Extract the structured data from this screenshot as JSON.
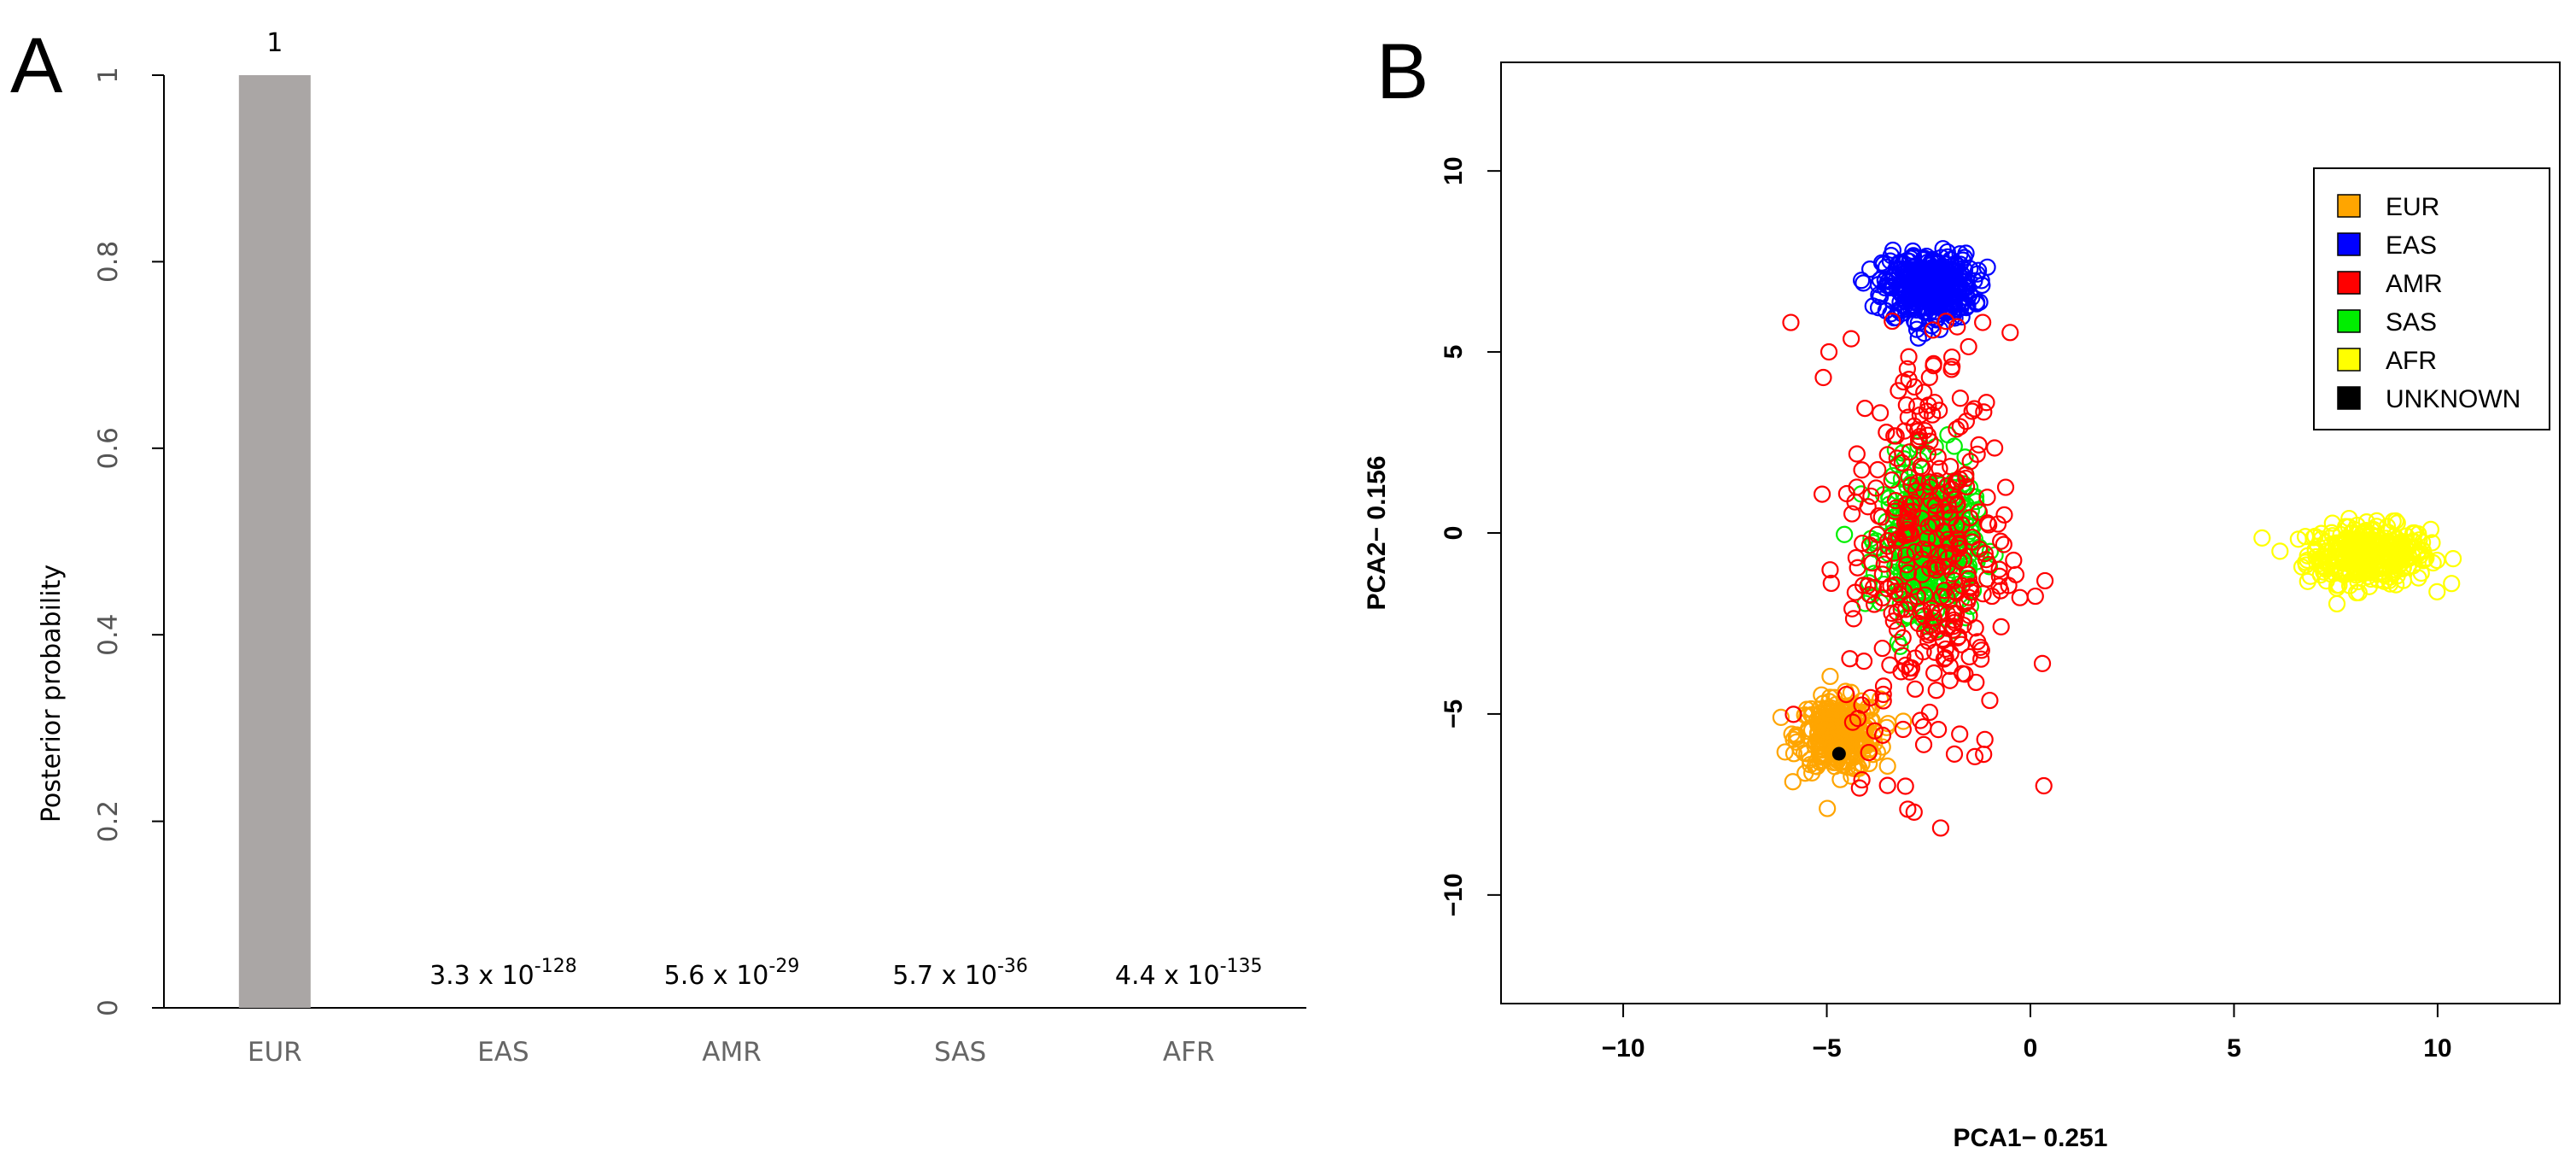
{
  "chart_data": [
    {
      "panel_label": "A",
      "type": "bar",
      "categories": [
        "EUR",
        "EAS",
        "AMR",
        "SAS",
        "AFR"
      ],
      "values": [
        1,
        3.3e-128,
        5.6e-29,
        5.7e-36,
        4.4e-135
      ],
      "value_labels": [
        {
          "base": "1",
          "exp": ""
        },
        {
          "base": "3.3 x 10",
          "exp": "-128"
        },
        {
          "base": "5.6 x 10",
          "exp": "-29"
        },
        {
          "base": "5.7 x 10",
          "exp": "-36"
        },
        {
          "base": "4.4 x 10",
          "exp": "-135"
        }
      ],
      "xlabel": "",
      "ylabel": "Posterior probability",
      "ylim": [
        0,
        1
      ],
      "yticks": [
        0,
        0.2,
        0.4,
        0.6,
        0.8,
        1
      ],
      "ytick_labels": [
        "0",
        "0.2",
        "0.4",
        "0.6",
        "0.8",
        "1"
      ],
      "bar_color": "#aaa6a5"
    },
    {
      "panel_label": "B",
      "type": "scatter",
      "xlabel": "PCA1− 0.251",
      "ylabel": "PCA2− 0.156",
      "xlim": [
        -13,
        13
      ],
      "ylim": [
        -13,
        13
      ],
      "xticks": [
        -10,
        -5,
        0,
        5,
        10
      ],
      "xtick_labels": [
        "−10",
        "−5",
        "0",
        "5",
        "10"
      ],
      "yticks": [
        -10,
        -5,
        0,
        5,
        10
      ],
      "ytick_labels": [
        "−10",
        "−5",
        "0",
        "5",
        "10"
      ],
      "legend_position": "top-right",
      "series": [
        {
          "name": "EUR",
          "color": "#ffa500",
          "count": 300,
          "center": [
            -4.7,
            -5.6
          ],
          "spread": [
            0.5,
            0.5
          ],
          "marker": "circle"
        },
        {
          "name": "EAS",
          "color": "#0000ff",
          "count": 400,
          "center": [
            -2.5,
            6.8
          ],
          "spread": [
            0.55,
            0.45
          ],
          "marker": "circle"
        },
        {
          "name": "AMR",
          "color": "#ff0000",
          "count": 350,
          "center": [
            -2.5,
            -0.5
          ],
          "spread": [
            1.0,
            3.0
          ],
          "marker": "circle"
        },
        {
          "name": "SAS",
          "color": "#00ee00",
          "count": 450,
          "center": [
            -2.5,
            -0.2
          ],
          "spread": [
            0.55,
            1.0
          ],
          "marker": "circle"
        },
        {
          "name": "AFR",
          "color": "#ffff00",
          "count": 350,
          "center": [
            8.3,
            -0.6
          ],
          "spread": [
            0.75,
            0.4
          ],
          "marker": "circle"
        },
        {
          "name": "UNKNOWN",
          "color": "#000000",
          "count": 1,
          "points": [
            [
              -4.7,
              -6.1
            ]
          ],
          "marker": "filled-circle"
        }
      ]
    }
  ]
}
